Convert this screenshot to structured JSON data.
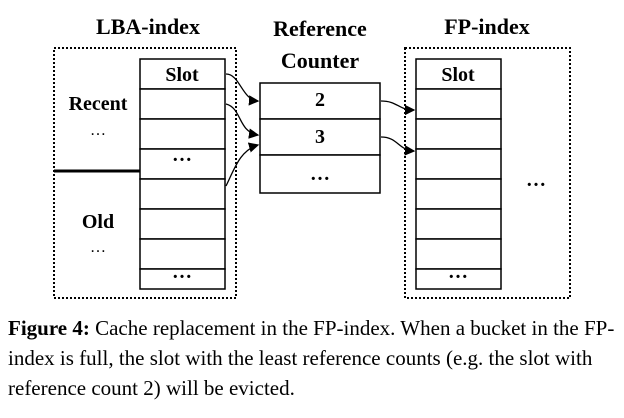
{
  "diagram": {
    "lba_index": {
      "title": "LBA-index",
      "slot_header": "Slot",
      "recent_label": "Recent",
      "recent_dots": "…",
      "old_label": "Old",
      "old_dots": "…",
      "slot_ellipses": [
        "…",
        "…"
      ]
    },
    "reference_counter": {
      "title_line1": "Reference",
      "title_line2": "Counter",
      "values": [
        "2",
        "3"
      ],
      "ellipsis": "…"
    },
    "fp_index": {
      "title": "FP-index",
      "slot_header": "Slot",
      "side_ellipsis": "…",
      "bottom_ellipsis": "…"
    }
  },
  "caption": {
    "label": "Figure 4:",
    "text": " Cache replacement in the FP-index. When a bucket in the FP-index is full, the slot with the least reference counts (e.g. the slot with reference count 2) will be evicted."
  }
}
